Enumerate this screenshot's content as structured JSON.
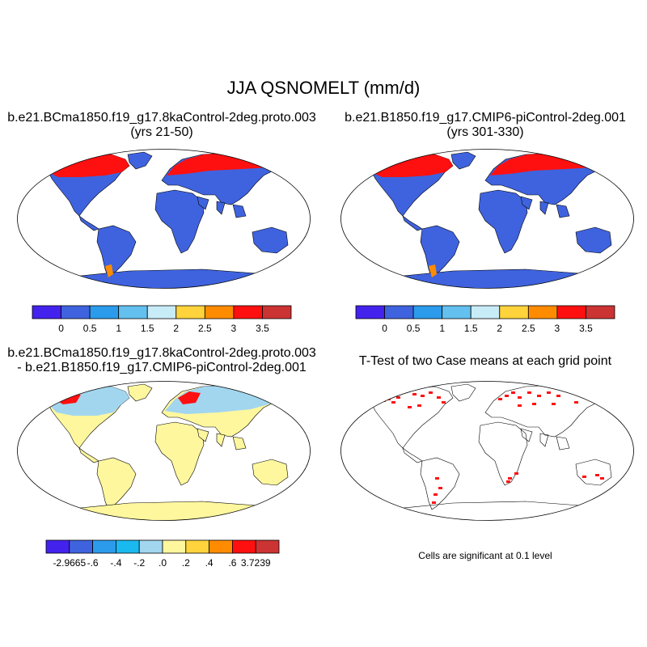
{
  "title": "JJA QSNOMELT (mm/d)",
  "panels": [
    {
      "title_line1": "b.e21.BCma1850.f19_g17.8kaControl-2deg.proto.003",
      "title_line2": "(yrs 21-50)"
    },
    {
      "title_line1": "b.e21.B1850.f19_g17.CMIP6-piControl-2deg.001",
      "title_line2": "(yrs 301-330)"
    },
    {
      "title_line1": "b.e21.BCma1850.f19_g17.8kaControl-2deg.proto.003",
      "title_line2": "- b.e21.B1850.f19_g17.CMIP6-piControl-2deg.001"
    },
    {
      "title_line1": "T-Test of two Case means at each grid point",
      "title_line2": ""
    }
  ],
  "colorbars": {
    "abs": {
      "colors": [
        "#4422ee",
        "#3f63de",
        "#2c9bec",
        "#63c0ef",
        "#c8ebf8",
        "#ffd33c",
        "#ff8c00",
        "#ff1010",
        "#cc3333"
      ],
      "labels": [
        "0",
        "0.5",
        "1",
        "1.5",
        "2",
        "2.5",
        "3",
        "3.5"
      ]
    },
    "diff": {
      "colors": [
        "#4422ee",
        "#3f63de",
        "#2c9bec",
        "#1ab9f0",
        "#a2d6ef",
        "#fff79e",
        "#ffd33c",
        "#ff8c00",
        "#ff1010",
        "#cc3333"
      ],
      "labels": [
        "-2.9665",
        "-.6",
        "-.4",
        "-.2",
        ".0",
        ".2",
        ".4",
        ".6",
        "3.7239"
      ]
    }
  },
  "ttest_note": "Cells are significant at 0.1 level"
}
